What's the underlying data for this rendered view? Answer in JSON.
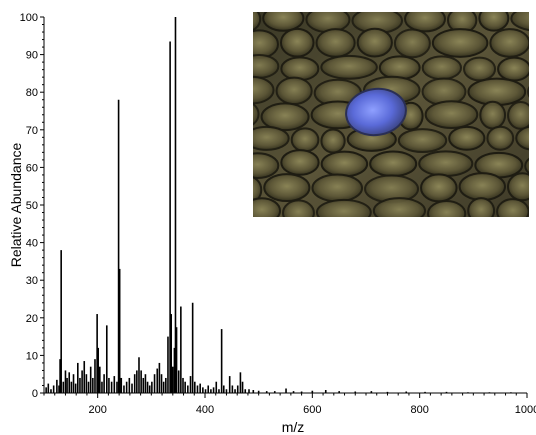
{
  "chart_data": {
    "type": "bar",
    "title": "",
    "xlabel": "m/z",
    "ylabel": "Relative Abundance",
    "xlim": [
      100,
      1000
    ],
    "ylim": [
      0,
      100
    ],
    "x_ticks": [
      200,
      400,
      600,
      800,
      1000
    ],
    "y_ticks": [
      0,
      10,
      20,
      30,
      40,
      50,
      60,
      70,
      80,
      90,
      100
    ],
    "grid": false,
    "legend": "none",
    "color": "#000000",
    "peaks": [
      {
        "x": 104,
        "y": 1.5
      },
      {
        "x": 108,
        "y": 2.5
      },
      {
        "x": 113,
        "y": 1
      },
      {
        "x": 118,
        "y": 2
      },
      {
        "x": 124,
        "y": 3.5
      },
      {
        "x": 128,
        "y": 2
      },
      {
        "x": 130,
        "y": 9
      },
      {
        "x": 132,
        "y": 38
      },
      {
        "x": 136,
        "y": 3
      },
      {
        "x": 140,
        "y": 6
      },
      {
        "x": 143,
        "y": 4
      },
      {
        "x": 147,
        "y": 5.5
      },
      {
        "x": 151,
        "y": 3
      },
      {
        "x": 155,
        "y": 5
      },
      {
        "x": 159,
        "y": 2.5
      },
      {
        "x": 163,
        "y": 8
      },
      {
        "x": 167,
        "y": 4
      },
      {
        "x": 171,
        "y": 6
      },
      {
        "x": 175,
        "y": 8.5
      },
      {
        "x": 179,
        "y": 5
      },
      {
        "x": 183,
        "y": 3
      },
      {
        "x": 187,
        "y": 7
      },
      {
        "x": 191,
        "y": 4
      },
      {
        "x": 195,
        "y": 9
      },
      {
        "x": 199,
        "y": 21
      },
      {
        "x": 201,
        "y": 12
      },
      {
        "x": 204,
        "y": 7
      },
      {
        "x": 208,
        "y": 3
      },
      {
        "x": 212,
        "y": 5
      },
      {
        "x": 217,
        "y": 18
      },
      {
        "x": 221,
        "y": 4
      },
      {
        "x": 226,
        "y": 3
      },
      {
        "x": 231,
        "y": 4.5
      },
      {
        "x": 236,
        "y": 3
      },
      {
        "x": 239,
        "y": 78
      },
      {
        "x": 241,
        "y": 33
      },
      {
        "x": 244,
        "y": 4
      },
      {
        "x": 249,
        "y": 2
      },
      {
        "x": 254,
        "y": 3
      },
      {
        "x": 259,
        "y": 4
      },
      {
        "x": 264,
        "y": 2.5
      },
      {
        "x": 269,
        "y": 5
      },
      {
        "x": 273,
        "y": 6
      },
      {
        "x": 277,
        "y": 9.5
      },
      {
        "x": 281,
        "y": 6
      },
      {
        "x": 285,
        "y": 4
      },
      {
        "x": 289,
        "y": 5
      },
      {
        "x": 293,
        "y": 3
      },
      {
        "x": 297,
        "y": 2
      },
      {
        "x": 301,
        "y": 3
      },
      {
        "x": 306,
        "y": 5
      },
      {
        "x": 311,
        "y": 6.5
      },
      {
        "x": 315,
        "y": 8
      },
      {
        "x": 319,
        "y": 5
      },
      {
        "x": 323,
        "y": 3
      },
      {
        "x": 327,
        "y": 4
      },
      {
        "x": 331,
        "y": 15
      },
      {
        "x": 335,
        "y": 93.5
      },
      {
        "x": 337,
        "y": 21
      },
      {
        "x": 340,
        "y": 7
      },
      {
        "x": 343,
        "y": 12
      },
      {
        "x": 345,
        "y": 100
      },
      {
        "x": 347,
        "y": 17.5
      },
      {
        "x": 351,
        "y": 6
      },
      {
        "x": 355,
        "y": 23
      },
      {
        "x": 359,
        "y": 4
      },
      {
        "x": 363,
        "y": 3
      },
      {
        "x": 368,
        "y": 2
      },
      {
        "x": 373,
        "y": 4.5
      },
      {
        "x": 377,
        "y": 24
      },
      {
        "x": 381,
        "y": 3
      },
      {
        "x": 386,
        "y": 2
      },
      {
        "x": 391,
        "y": 2.5
      },
      {
        "x": 396,
        "y": 1.5
      },
      {
        "x": 401,
        "y": 1
      },
      {
        "x": 406,
        "y": 2
      },
      {
        "x": 411,
        "y": 1
      },
      {
        "x": 416,
        "y": 1.5
      },
      {
        "x": 421,
        "y": 3
      },
      {
        "x": 426,
        "y": 1
      },
      {
        "x": 431,
        "y": 17
      },
      {
        "x": 435,
        "y": 2
      },
      {
        "x": 440,
        "y": 1
      },
      {
        "x": 446,
        "y": 4.5
      },
      {
        "x": 451,
        "y": 2
      },
      {
        "x": 456,
        "y": 1
      },
      {
        "x": 461,
        "y": 2
      },
      {
        "x": 466,
        "y": 5.5
      },
      {
        "x": 470,
        "y": 3
      },
      {
        "x": 475,
        "y": 1
      },
      {
        "x": 482,
        "y": 1
      },
      {
        "x": 490,
        "y": 0.8
      },
      {
        "x": 500,
        "y": 0.6
      },
      {
        "x": 515,
        "y": 0.5
      },
      {
        "x": 530,
        "y": 0.5
      },
      {
        "x": 551,
        "y": 1.2
      },
      {
        "x": 565,
        "y": 0.5
      },
      {
        "x": 580,
        "y": 0.4
      },
      {
        "x": 600,
        "y": 0.6
      },
      {
        "x": 625,
        "y": 0.8
      },
      {
        "x": 650,
        "y": 0.5
      },
      {
        "x": 680,
        "y": 0.4
      },
      {
        "x": 710,
        "y": 0.5
      },
      {
        "x": 740,
        "y": 0.3
      },
      {
        "x": 775,
        "y": 0.4
      },
      {
        "x": 810,
        "y": 0.3
      },
      {
        "x": 850,
        "y": 0.3
      },
      {
        "x": 890,
        "y": 0.2
      },
      {
        "x": 930,
        "y": 0.2
      },
      {
        "x": 970,
        "y": 0.2
      }
    ]
  },
  "inset_image": {
    "background_color": "#4a4632",
    "cell_wall_color": "#1e1c12",
    "highlight_color": "#5a6ad8"
  }
}
